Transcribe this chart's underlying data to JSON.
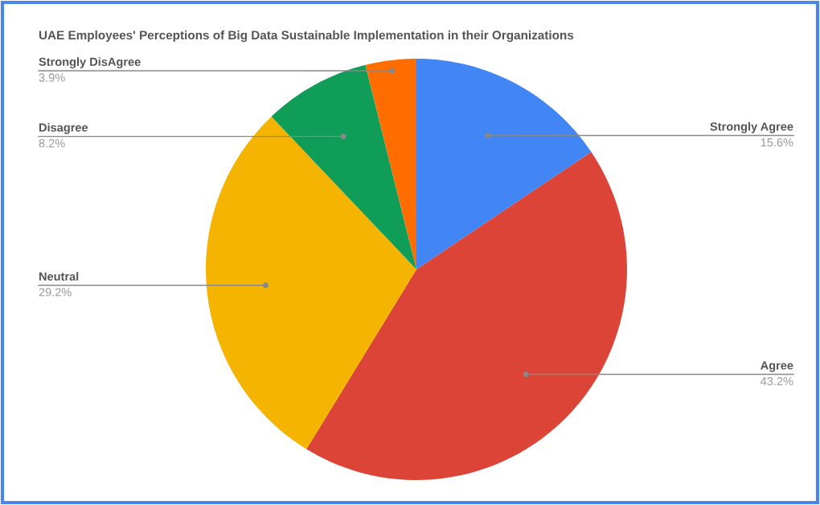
{
  "chart_data": {
    "type": "pie",
    "title": "UAE Employees' Perceptions of Big Data Sustainable Implementation in their Organizations",
    "categories": [
      "Strongly Agree",
      "Agree",
      "Neutral",
      "Disagree",
      "Strongly DisAgree"
    ],
    "values": [
      15.6,
      43.2,
      29.2,
      8.2,
      3.9
    ],
    "value_labels": [
      "15.6%",
      "43.2%",
      "29.2%",
      "8.2%",
      "3.9%"
    ],
    "colors": [
      "#4285f4",
      "#db4437",
      "#f4b400",
      "#0f9d58",
      "#ff6d01"
    ],
    "legend": false
  }
}
